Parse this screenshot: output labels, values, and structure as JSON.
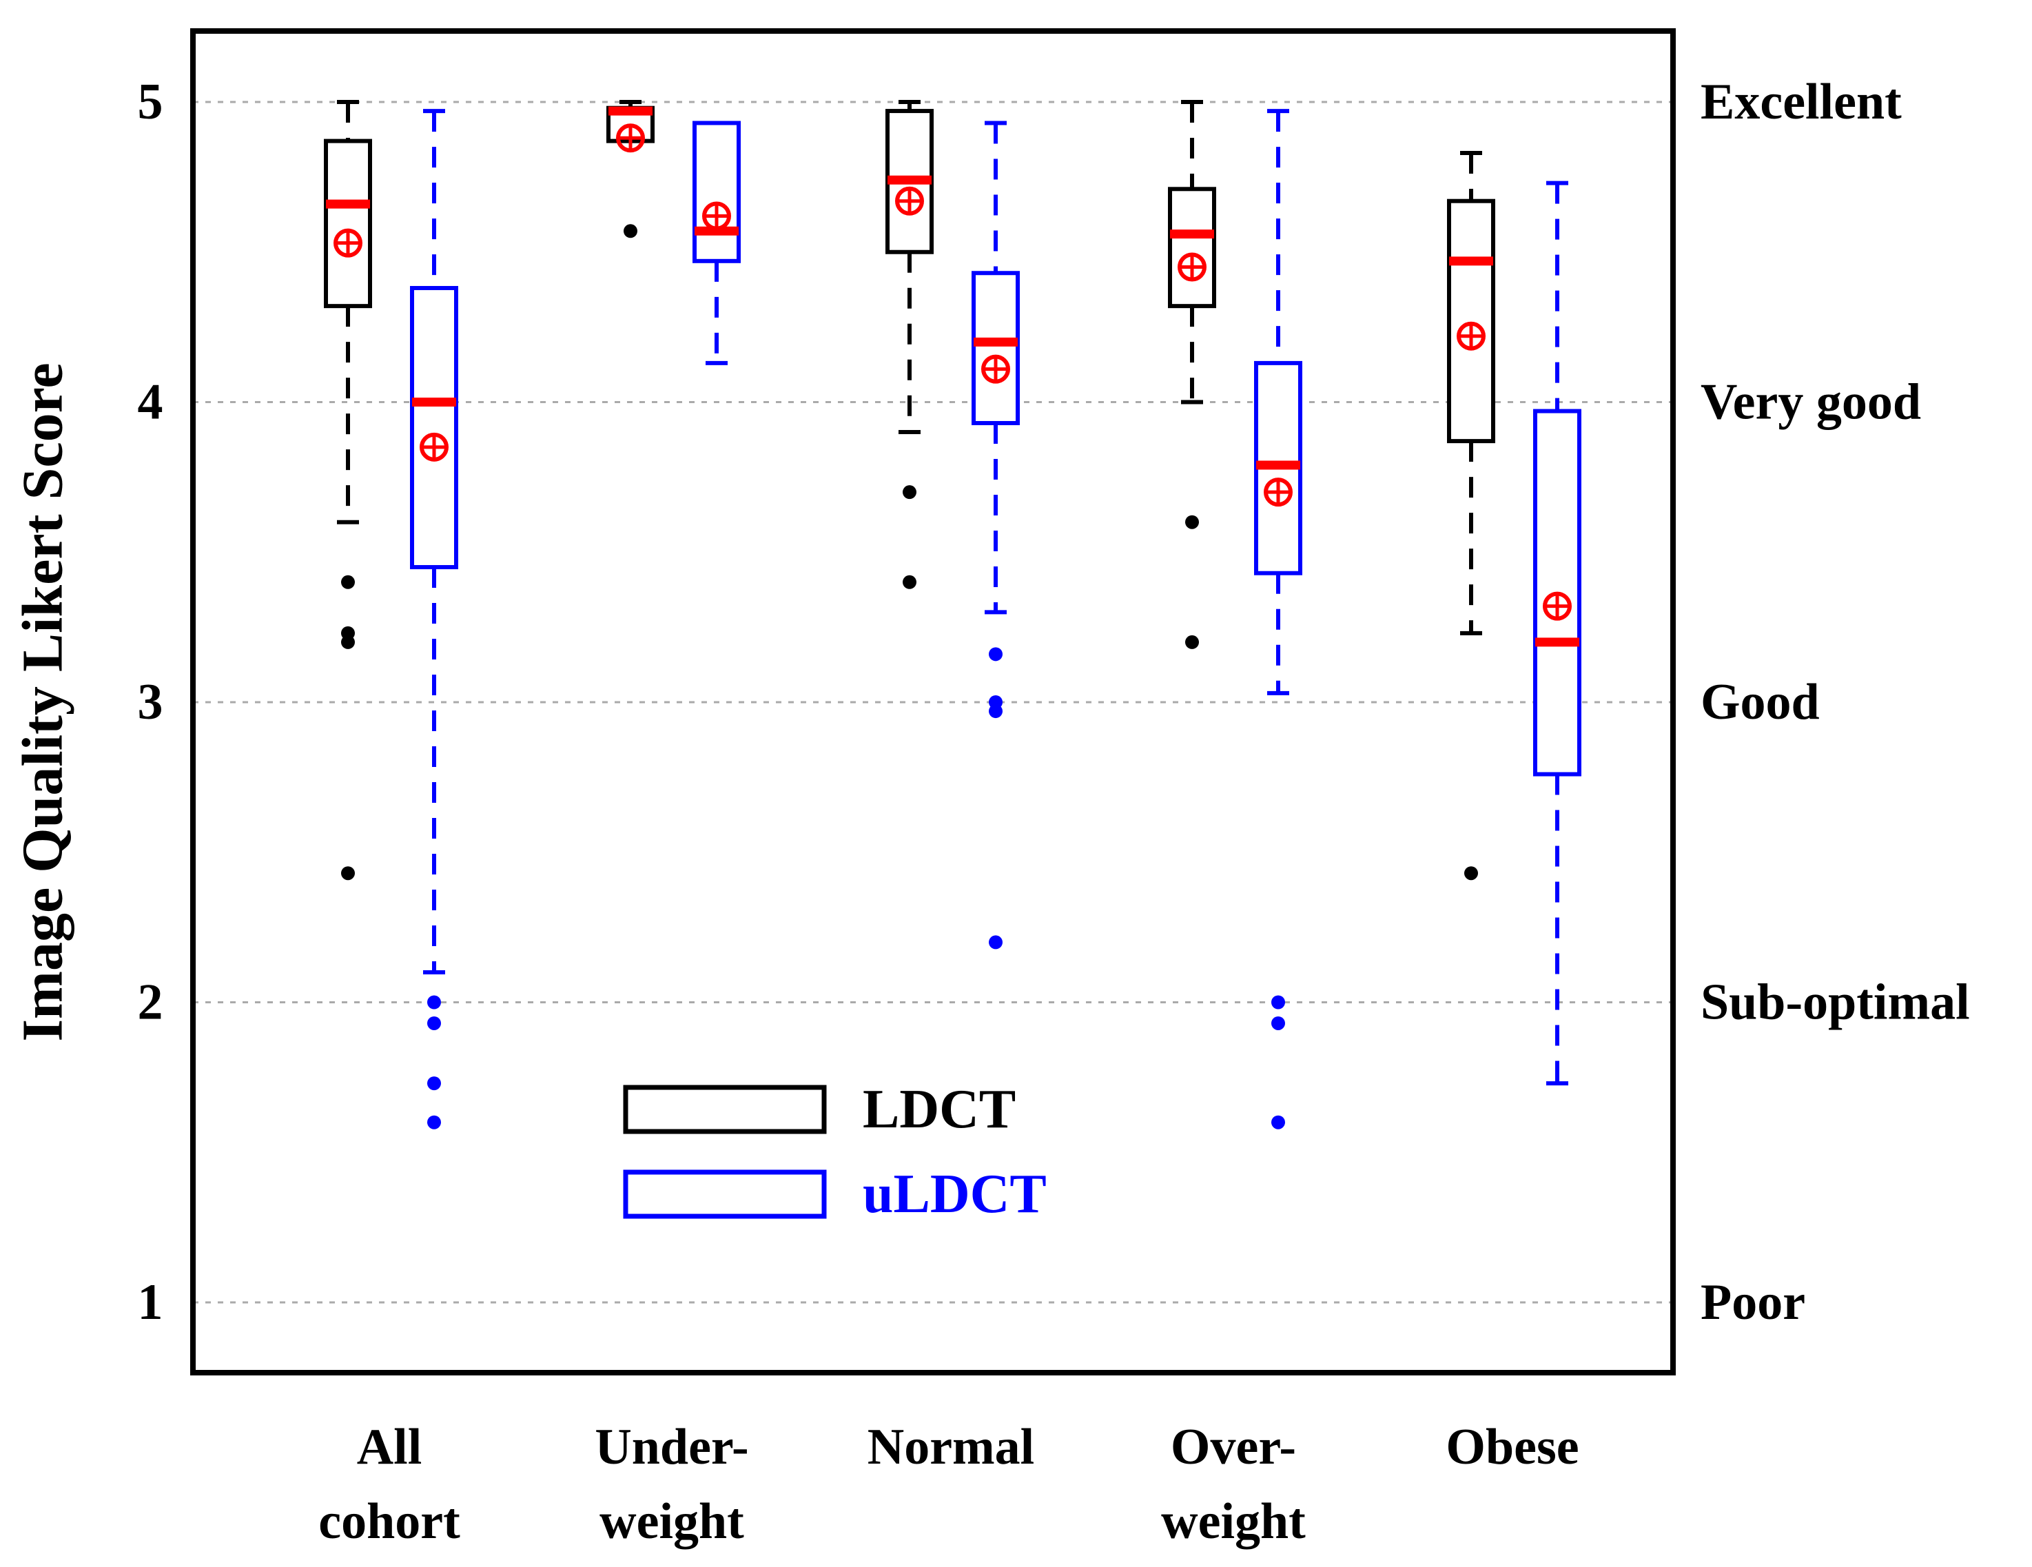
{
  "chart_data": {
    "type": "box",
    "ylabel": "Image Quality Likert Score",
    "ylim": [
      0.7,
      5.25
    ],
    "yticks": [
      1,
      2,
      3,
      4,
      5
    ],
    "grid": "horizontal dashed",
    "right_axis_labels": [
      {
        "value": 5,
        "label": "Excellent"
      },
      {
        "value": 4,
        "label": "Very good"
      },
      {
        "value": 3,
        "label": "Good"
      },
      {
        "value": 2,
        "label": "Sub-optimal"
      },
      {
        "value": 1,
        "label": "Poor"
      }
    ],
    "categories": [
      {
        "lines": [
          "All",
          "cohort"
        ]
      },
      {
        "lines": [
          "Under-",
          "weight"
        ]
      },
      {
        "lines": [
          "Normal"
        ]
      },
      {
        "lines": [
          "Over-",
          "weight"
        ]
      },
      {
        "lines": [
          "Obese"
        ]
      }
    ],
    "legend": {
      "position": "bottom-center",
      "entries": [
        {
          "label": "LDCT",
          "color": "#000000"
        },
        {
          "label": "uLDCT",
          "color": "#0000ff"
        }
      ]
    },
    "median_color": "#ff0000",
    "mean_marker_color": "#ff0000",
    "series": [
      {
        "name": "LDCT",
        "color": "#000000",
        "boxes": [
          {
            "whisker_low": 3.6,
            "q1": 4.32,
            "median": 4.66,
            "q3": 4.87,
            "whisker_high": 5.0,
            "mean": 4.53,
            "outliers": [
              3.4,
              3.23,
              3.2,
              2.43
            ]
          },
          {
            "whisker_low": 4.87,
            "q1": 4.87,
            "median": 4.97,
            "q3": 4.98,
            "whisker_high": 5.0,
            "mean": 4.88,
            "outliers": [
              4.57
            ]
          },
          {
            "whisker_low": 3.9,
            "q1": 4.5,
            "median": 4.74,
            "q3": 4.97,
            "whisker_high": 5.0,
            "mean": 4.67,
            "outliers": [
              3.7,
              3.4
            ]
          },
          {
            "whisker_low": 4.0,
            "q1": 4.32,
            "median": 4.56,
            "q3": 4.71,
            "whisker_high": 5.0,
            "mean": 4.45,
            "outliers": [
              3.6,
              3.2
            ]
          },
          {
            "whisker_low": 3.23,
            "q1": 3.87,
            "median": 4.47,
            "q3": 4.67,
            "whisker_high": 4.83,
            "mean": 4.22,
            "outliers": [
              2.43
            ]
          }
        ]
      },
      {
        "name": "uLDCT",
        "color": "#0000ff",
        "boxes": [
          {
            "whisker_low": 2.1,
            "q1": 3.45,
            "median": 4.0,
            "q3": 4.38,
            "whisker_high": 4.97,
            "mean": 3.85,
            "outliers": [
              2.0,
              1.93,
              1.73,
              1.6
            ]
          },
          {
            "whisker_low": 4.13,
            "q1": 4.47,
            "median": 4.57,
            "q3": 4.93,
            "whisker_high": 4.93,
            "mean": 4.62,
            "outliers": []
          },
          {
            "whisker_low": 3.3,
            "q1": 3.93,
            "median": 4.2,
            "q3": 4.43,
            "whisker_high": 4.93,
            "mean": 4.11,
            "outliers": [
              3.16,
              3.0,
              2.97,
              2.2
            ]
          },
          {
            "whisker_low": 3.03,
            "q1": 3.43,
            "median": 3.79,
            "q3": 4.13,
            "whisker_high": 4.97,
            "mean": 3.7,
            "outliers": [
              2.0,
              1.93,
              1.6
            ]
          },
          {
            "whisker_low": 1.73,
            "q1": 2.76,
            "median": 3.2,
            "q3": 3.97,
            "whisker_high": 4.73,
            "mean": 3.32,
            "outliers": []
          }
        ]
      }
    ]
  }
}
